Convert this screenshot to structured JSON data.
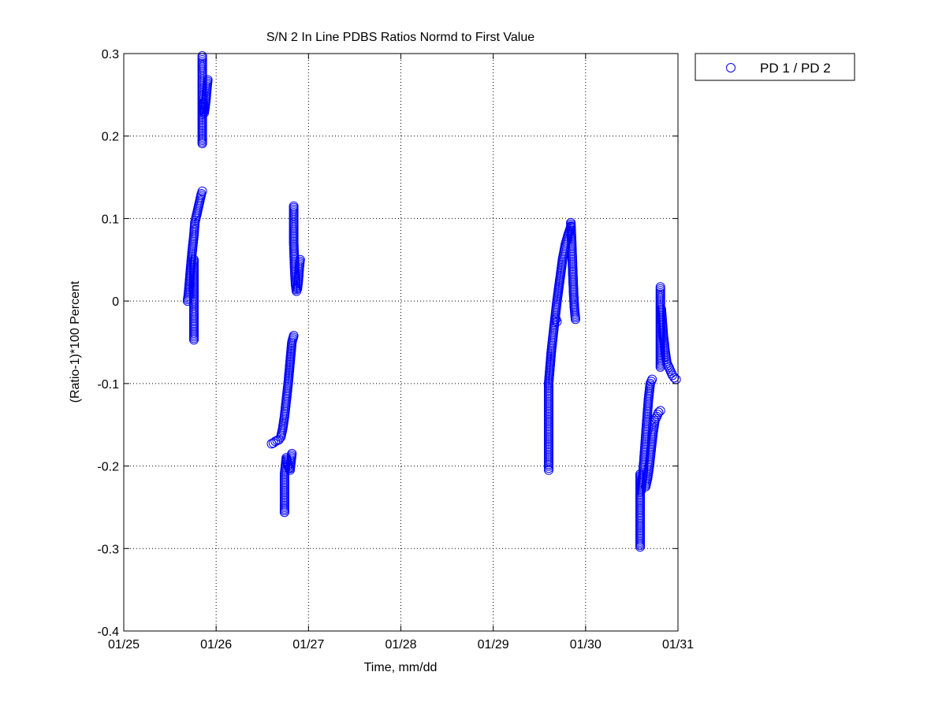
{
  "chart_data": {
    "type": "scatter",
    "title": "S/N 2 In Line PDBS Ratios Normd to First Value",
    "xlabel": "Time, mm/dd",
    "ylabel": "(Ratio-1)*100 Percent",
    "xlim": [
      "01/25",
      "01/31"
    ],
    "ylim": [
      -0.4,
      0.3
    ],
    "x_tick_labels": [
      "01/25",
      "01/26",
      "01/27",
      "01/28",
      "01/29",
      "01/30",
      "01/31"
    ],
    "y_ticks": [
      -0.4,
      -0.3,
      -0.2,
      -0.1,
      0,
      0.1,
      0.2,
      0.3
    ],
    "y_tick_labels": [
      "-0.4",
      "-0.3",
      "-0.2",
      "-0.1",
      "0",
      "0.1",
      "0.2",
      "0.3"
    ],
    "grid": true,
    "legend_position": "outside-top-right",
    "marker": "open-circle",
    "color": "#0000ff",
    "series": [
      {
        "name": "PD 1 / PD 2",
        "segments": [
          {
            "x": [
              "01/25 16:34",
              "01/25 16:50",
              "01/25 17:17",
              "01/25 17:46",
              "01/25 18:14",
              "01/25 18:29",
              "01/25 18:43",
              "01/25 19:12",
              "01/25 19:41",
              "01/25 20:10",
              "01/25 20:24"
            ],
            "y": [
              0.0,
              0.01,
              0.035,
              0.06,
              0.08,
              0.095,
              0.1,
              0.11,
              0.12,
              0.13,
              0.133
            ]
          },
          {
            "x": [
              "01/25 18:14",
              "01/25 18:14",
              "01/25 18:14",
              "01/25 18:14",
              "01/25 18:14",
              "01/25 18:14",
              "01/25 18:14"
            ],
            "y": [
              -0.047,
              -0.043,
              -0.035,
              -0.025,
              -0.015,
              0.0,
              0.05
            ]
          },
          {
            "x": [
              "01/25 20:24",
              "01/25 20:24",
              "01/25 20:24",
              "01/25 20:24",
              "01/25 20:24",
              "01/25 20:24"
            ],
            "y": [
              0.297,
              0.29,
              0.28,
              0.265,
              0.25,
              0.191
            ]
          },
          {
            "x": [
              "01/25 20:38",
              "01/25 20:53",
              "01/25 21:07",
              "01/25 21:22",
              "01/25 21:36",
              "01/25 21:50"
            ],
            "y": [
              0.24,
              0.228,
              0.235,
              0.245,
              0.258,
              0.268
            ]
          },
          {
            "x": [
              "01/26 14:24",
              "01/26 14:53",
              "01/26 15:22",
              "01/26 15:50",
              "01/26 16:19",
              "01/26 16:48",
              "01/26 17:17",
              "01/26 17:46",
              "01/26 18:14",
              "01/26 18:43",
              "01/26 19:12",
              "01/26 19:41",
              "01/26 20:10"
            ],
            "y": [
              -0.173,
              -0.172,
              -0.17,
              -0.169,
              -0.168,
              -0.165,
              -0.155,
              -0.14,
              -0.12,
              -0.1,
              -0.075,
              -0.05,
              -0.042
            ]
          },
          {
            "x": [
              "01/26 17:46",
              "01/26 17:46",
              "01/26 17:46",
              "01/26 17:46",
              "01/26 17:46",
              "01/26 18:14",
              "01/26 18:43",
              "01/26 19:12",
              "01/26 19:41"
            ],
            "y": [
              -0.256,
              -0.25,
              -0.24,
              -0.23,
              -0.21,
              -0.19,
              -0.2,
              -0.205,
              -0.185
            ]
          },
          {
            "x": [
              "01/26 20:10",
              "01/26 20:10",
              "01/26 20:10",
              "01/26 20:10",
              "01/26 20:24",
              "01/26 20:38",
              "01/26 20:53",
              "01/26 21:07",
              "01/26 21:22",
              "01/26 21:36",
              "01/26 21:50"
            ],
            "y": [
              0.115,
              0.105,
              0.09,
              0.07,
              0.04,
              0.02,
              0.012,
              0.015,
              0.025,
              0.04,
              0.05
            ]
          },
          {
            "x": [
              "01/29 14:24",
              "01/29 14:24",
              "01/29 14:24",
              "01/29 14:24",
              "01/29 14:24",
              "01/29 14:24"
            ],
            "y": [
              -0.205,
              -0.2,
              -0.18,
              -0.15,
              -0.13,
              -0.1
            ]
          },
          {
            "x": [
              "01/29 14:24",
              "01/29 15:07",
              "01/29 15:50",
              "01/29 16:34",
              "01/29 17:17",
              "01/29 18:00",
              "01/29 18:43",
              "01/29 19:26",
              "01/29 20:10"
            ],
            "y": [
              -0.1,
              -0.06,
              -0.03,
              0.0,
              0.025,
              0.05,
              0.068,
              0.08,
              0.09
            ]
          },
          {
            "x": [
              "01/29 16:05",
              "01/29 16:19",
              "01/29 16:34"
            ],
            "y": [
              -0.02,
              -0.022,
              -0.025
            ]
          },
          {
            "x": [
              "01/29 20:10",
              "01/29 20:24",
              "01/29 20:38",
              "01/29 20:53",
              "01/29 21:07",
              "01/29 21:22"
            ],
            "y": [
              0.095,
              0.07,
              0.04,
              0.01,
              -0.01,
              -0.022
            ]
          },
          {
            "x": [
              "01/30 14:10",
              "01/30 14:10",
              "01/30 14:10",
              "01/30 14:10",
              "01/30 14:10",
              "01/30 14:10"
            ],
            "y": [
              -0.298,
              -0.28,
              -0.26,
              -0.24,
              -0.22,
              -0.21
            ]
          },
          {
            "x": [
              "01/30 14:24",
              "01/30 14:53",
              "01/30 15:22",
              "01/30 15:50",
              "01/30 16:19",
              "01/30 16:48",
              "01/30 17:17"
            ],
            "y": [
              -0.23,
              -0.21,
              -0.18,
              -0.15,
              -0.12,
              -0.1,
              -0.095
            ]
          },
          {
            "x": [
              "01/30 15:36",
              "01/30 16:05",
              "01/30 16:34",
              "01/30 17:02",
              "01/30 17:31",
              "01/30 18:00",
              "01/30 18:29",
              "01/30 18:58",
              "01/30 19:26"
            ],
            "y": [
              -0.225,
              -0.215,
              -0.2,
              -0.18,
              -0.16,
              -0.145,
              -0.14,
              -0.135,
              -0.133
            ]
          },
          {
            "x": [
              "01/30 19:26",
              "01/30 19:26",
              "01/30 19:26",
              "01/30 19:26",
              "01/30 19:26",
              "01/30 19:26"
            ],
            "y": [
              0.017,
              0.01,
              0.0,
              -0.02,
              -0.05,
              -0.08
            ]
          },
          {
            "x": [
              "01/30 19:41",
              "01/30 20:10",
              "01/30 20:38",
              "01/30 21:07",
              "01/30 21:36",
              "01/30 22:05",
              "01/30 22:34",
              "01/30 23:02",
              "01/30 23:31"
            ],
            "y": [
              -0.01,
              -0.04,
              -0.06,
              -0.075,
              -0.08,
              -0.085,
              -0.09,
              -0.093,
              -0.095
            ]
          }
        ]
      }
    ]
  }
}
